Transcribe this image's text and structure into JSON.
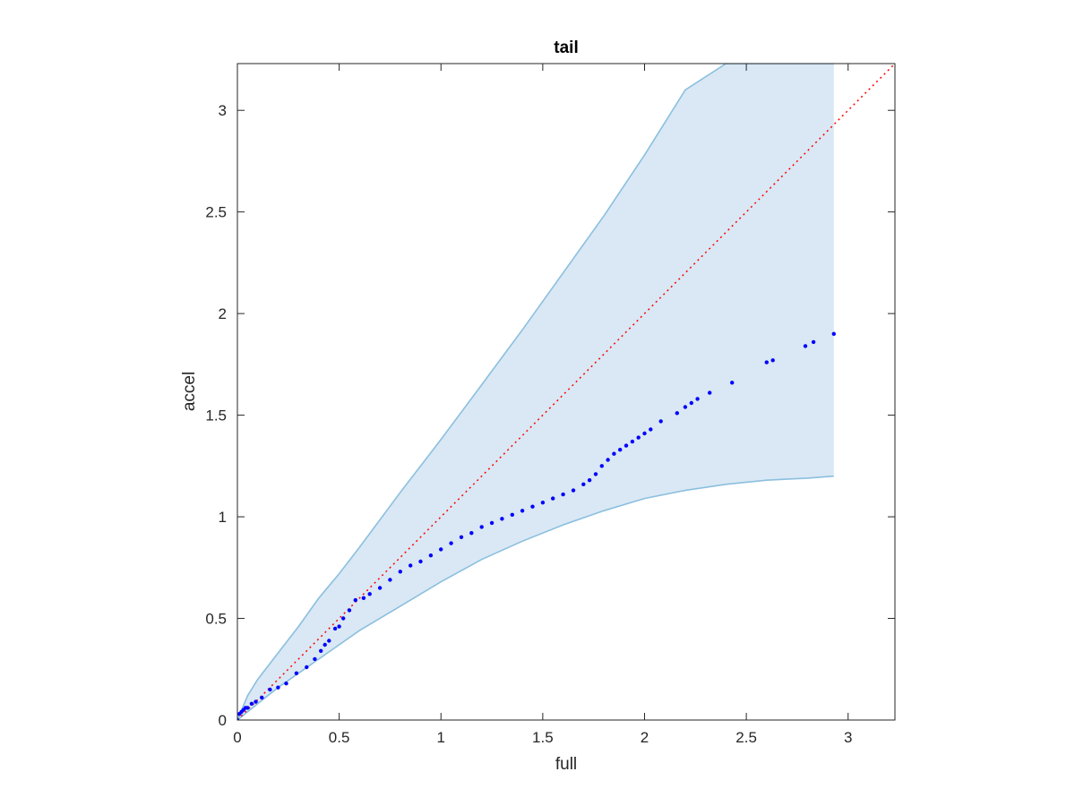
{
  "chart_data": {
    "type": "scatter",
    "title": "tail",
    "xlabel": "full",
    "ylabel": "accel",
    "xlim": [
      0,
      3.23
    ],
    "ylim": [
      0,
      3.23
    ],
    "xticks": [
      0,
      0.5,
      1,
      1.5,
      2,
      2.5,
      3
    ],
    "xtick_labels": [
      "0",
      "0.5",
      "1",
      "1.5",
      "2",
      "2.5",
      "3"
    ],
    "yticks": [
      0,
      0.5,
      1,
      1.5,
      2,
      2.5,
      3
    ],
    "ytick_labels": [
      "0",
      "0.5",
      "1",
      "1.5",
      "2",
      "2.5",
      "3"
    ],
    "grid": false,
    "colors": {
      "points": "#0000ff",
      "reference_line": "#ff0000",
      "band_fill": "#d9e8f4",
      "band_edge": "#8bbfdf",
      "axes": "#262626"
    },
    "reference_line": {
      "style": "dotted",
      "x": [
        0,
        3.23
      ],
      "y": [
        0,
        3.23
      ]
    },
    "band": {
      "x": [
        0,
        0.05,
        0.1,
        0.2,
        0.3,
        0.4,
        0.5,
        0.6,
        0.8,
        1.0,
        1.2,
        1.4,
        1.6,
        1.8,
        2.0,
        2.2,
        2.4,
        2.6,
        2.8,
        2.93
      ],
      "lower": [
        0,
        0.04,
        0.08,
        0.16,
        0.23,
        0.3,
        0.37,
        0.44,
        0.56,
        0.68,
        0.79,
        0.88,
        0.96,
        1.03,
        1.09,
        1.13,
        1.16,
        1.18,
        1.19,
        1.2
      ],
      "upper": [
        0,
        0.12,
        0.2,
        0.33,
        0.46,
        0.6,
        0.72,
        0.85,
        1.12,
        1.38,
        1.65,
        1.92,
        2.2,
        2.48,
        2.78,
        3.1,
        3.23,
        3.23,
        3.23,
        3.23
      ]
    },
    "series": [
      {
        "x": [
          0.0,
          0.01,
          0.02,
          0.03,
          0.04,
          0.05,
          0.07,
          0.09,
          0.12,
          0.16,
          0.2,
          0.24,
          0.29,
          0.34,
          0.38,
          0.41,
          0.43,
          0.45,
          0.48,
          0.5,
          0.52,
          0.55,
          0.58,
          0.62,
          0.65,
          0.7,
          0.75,
          0.8,
          0.85,
          0.9,
          0.95,
          1.0,
          1.05,
          1.1,
          1.15,
          1.2,
          1.25,
          1.3,
          1.35,
          1.4,
          1.45,
          1.5,
          1.55,
          1.6,
          1.65,
          1.7,
          1.73,
          1.76,
          1.79,
          1.82,
          1.85,
          1.88,
          1.91,
          1.94,
          1.97,
          2.0,
          2.03,
          2.08,
          2.16,
          2.2,
          2.23,
          2.26,
          2.32,
          2.43,
          2.6,
          2.63,
          2.79,
          2.83,
          2.93
        ],
        "y": [
          0.0,
          0.03,
          0.04,
          0.05,
          0.06,
          0.06,
          0.08,
          0.09,
          0.11,
          0.15,
          0.16,
          0.18,
          0.23,
          0.26,
          0.3,
          0.34,
          0.37,
          0.39,
          0.45,
          0.46,
          0.5,
          0.54,
          0.59,
          0.6,
          0.62,
          0.65,
          0.69,
          0.73,
          0.76,
          0.78,
          0.81,
          0.84,
          0.87,
          0.9,
          0.92,
          0.95,
          0.97,
          0.99,
          1.01,
          1.03,
          1.05,
          1.07,
          1.09,
          1.11,
          1.13,
          1.16,
          1.18,
          1.21,
          1.25,
          1.28,
          1.31,
          1.33,
          1.35,
          1.37,
          1.39,
          1.41,
          1.43,
          1.47,
          1.51,
          1.54,
          1.56,
          1.58,
          1.61,
          1.66,
          1.76,
          1.77,
          1.84,
          1.86,
          1.9
        ]
      }
    ]
  }
}
